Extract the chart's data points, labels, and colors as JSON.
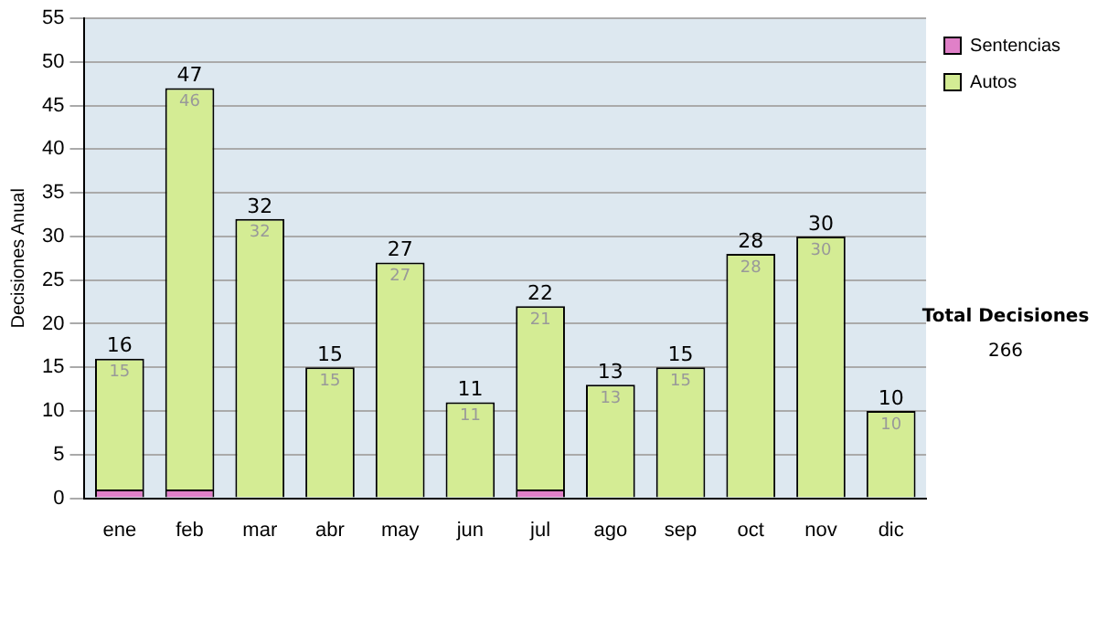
{
  "chart_data": {
    "type": "bar",
    "stacked": true,
    "ylabel": "Decisiones Anual",
    "categories": [
      "ene",
      "feb",
      "mar",
      "abr",
      "may",
      "jun",
      "jul",
      "ago",
      "sep",
      "oct",
      "nov",
      "dic"
    ],
    "series": [
      {
        "name": "Sentencias",
        "color": "#e080c8",
        "values": [
          1,
          1,
          0,
          0,
          0,
          0,
          1,
          0,
          0,
          0,
          0,
          0
        ]
      },
      {
        "name": "Autos",
        "color": "#d4ec94",
        "values": [
          15,
          46,
          32,
          15,
          27,
          11,
          21,
          13,
          15,
          28,
          30,
          10
        ],
        "value_labels": [
          "15",
          "46",
          "32",
          "15",
          "27",
          "11",
          "21",
          "13",
          "15",
          "28",
          "30",
          "10"
        ]
      }
    ],
    "totals": [
      "16",
      "47",
      "32",
      "15",
      "27",
      "11",
      "22",
      "13",
      "15",
      "28",
      "30",
      "10"
    ],
    "ylim": [
      0,
      55
    ],
    "yticks": [
      0,
      5,
      10,
      15,
      20,
      25,
      30,
      35,
      40,
      45,
      50,
      55
    ],
    "grid": "y",
    "legend": "right",
    "annotations": [
      "Total Decisiones",
      "266"
    ]
  }
}
